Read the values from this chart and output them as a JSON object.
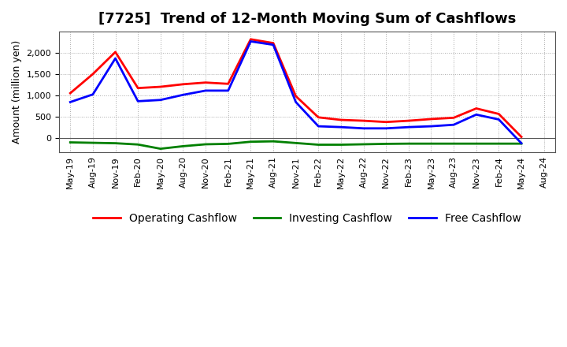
{
  "title": "[7725]  Trend of 12-Month Moving Sum of Cashflows",
  "ylabel": "Amount (million yen)",
  "x_labels": [
    "May-19",
    "Aug-19",
    "Nov-19",
    "Feb-20",
    "May-20",
    "Aug-20",
    "Nov-20",
    "Feb-21",
    "May-21",
    "Aug-21",
    "Nov-21",
    "Feb-22",
    "May-22",
    "Aug-22",
    "Nov-22",
    "Feb-23",
    "May-23",
    "Aug-23",
    "Nov-23",
    "Feb-24",
    "May-24",
    "Aug-24"
  ],
  "operating": [
    1050,
    1500,
    2020,
    1170,
    1200,
    1260,
    1300,
    1270,
    2320,
    2230,
    980,
    480,
    420,
    400,
    370,
    400,
    440,
    470,
    690,
    560,
    20,
    null
  ],
  "investing": [
    -110,
    -120,
    -130,
    -160,
    -260,
    -200,
    -155,
    -145,
    -95,
    -85,
    -125,
    -165,
    -165,
    -155,
    -145,
    -140,
    -140,
    -140,
    -140,
    -140,
    -140,
    null
  ],
  "free": [
    840,
    1020,
    1870,
    860,
    890,
    1010,
    1110,
    1110,
    2270,
    2190,
    840,
    270,
    250,
    220,
    220,
    250,
    270,
    305,
    545,
    430,
    -130,
    null
  ],
  "ylim": [
    -350,
    2500
  ],
  "yticks": [
    0,
    500,
    1000,
    1500,
    2000
  ],
  "operating_color": "#ff0000",
  "investing_color": "#008000",
  "free_color": "#0000ff",
  "bg_color": "#ffffff",
  "grid_color": "#aaaaaa",
  "zero_line_color": "#555555",
  "title_fontsize": 13,
  "label_fontsize": 9,
  "tick_fontsize": 8,
  "legend_fontsize": 10,
  "linewidth": 2.0
}
